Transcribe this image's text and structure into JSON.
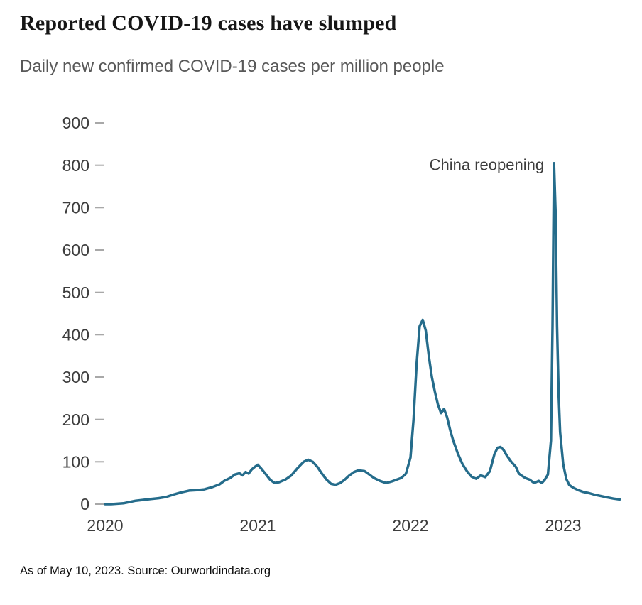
{
  "header": {
    "title": "Reported COVID-19 cases have slumped",
    "subtitle": "Daily new confirmed COVID-19 cases per million people"
  },
  "footer": {
    "text": "As of May 10, 2023. Source: Ourworldindata.org"
  },
  "chart_data": {
    "type": "line",
    "title": "Reported COVID-19 cases have slumped",
    "subtitle": "Daily new confirmed COVID-19 cases per million people",
    "xlabel": "",
    "ylabel": "",
    "xlim": [
      2020,
      2023.4
    ],
    "ylim": [
      0,
      900
    ],
    "yticks": [
      0,
      100,
      200,
      300,
      400,
      500,
      600,
      700,
      800,
      900
    ],
    "xticks": [
      2020,
      2021,
      2022,
      2023
    ],
    "grid": false,
    "legend": "none",
    "line_color": "#256C8B",
    "annotation": {
      "text": "China reopening",
      "x": 2022.94,
      "y": 800
    },
    "series_name": "Daily new confirmed COVID-19 cases per million people",
    "x": [
      2020.0,
      2020.04,
      2020.08,
      2020.12,
      2020.16,
      2020.2,
      2020.25,
      2020.3,
      2020.35,
      2020.4,
      2020.45,
      2020.5,
      2020.55,
      2020.6,
      2020.65,
      2020.7,
      2020.75,
      2020.78,
      2020.82,
      2020.85,
      2020.88,
      2020.9,
      2020.92,
      2020.94,
      2020.96,
      2020.98,
      2021.0,
      2021.02,
      2021.05,
      2021.08,
      2021.11,
      2021.14,
      2021.18,
      2021.22,
      2021.26,
      2021.3,
      2021.33,
      2021.36,
      2021.39,
      2021.42,
      2021.45,
      2021.48,
      2021.51,
      2021.54,
      2021.57,
      2021.6,
      2021.63,
      2021.66,
      2021.7,
      2021.73,
      2021.76,
      2021.8,
      2021.84,
      2021.88,
      2021.91,
      2021.94,
      2021.97,
      2022.0,
      2022.02,
      2022.04,
      2022.06,
      2022.08,
      2022.1,
      2022.12,
      2022.14,
      2022.16,
      2022.18,
      2022.2,
      2022.22,
      2022.24,
      2022.26,
      2022.28,
      2022.31,
      2022.34,
      2022.37,
      2022.4,
      2022.43,
      2022.46,
      2022.49,
      2022.52,
      2022.55,
      2022.57,
      2022.59,
      2022.61,
      2022.63,
      2022.66,
      2022.69,
      2022.71,
      2022.75,
      2022.78,
      2022.81,
      2022.84,
      2022.86,
      2022.88,
      2022.9,
      2022.92,
      2022.93,
      2022.94,
      2022.95,
      2022.96,
      2022.97,
      2022.98,
      2023.0,
      2023.02,
      2023.04,
      2023.07,
      2023.1,
      2023.13,
      2023.17,
      2023.21,
      2023.25,
      2023.29,
      2023.33,
      2023.37
    ],
    "values": [
      0,
      0,
      1,
      2,
      5,
      8,
      10,
      12,
      14,
      17,
      23,
      28,
      32,
      33,
      35,
      40,
      47,
      55,
      62,
      70,
      73,
      68,
      76,
      72,
      82,
      88,
      93,
      85,
      72,
      58,
      50,
      52,
      58,
      68,
      85,
      100,
      105,
      100,
      88,
      72,
      58,
      48,
      46,
      50,
      58,
      68,
      76,
      80,
      78,
      70,
      62,
      55,
      50,
      54,
      58,
      62,
      72,
      110,
      200,
      330,
      420,
      435,
      410,
      350,
      300,
      265,
      235,
      215,
      225,
      205,
      175,
      150,
      120,
      95,
      78,
      65,
      60,
      68,
      64,
      78,
      118,
      133,
      135,
      128,
      115,
      100,
      88,
      72,
      62,
      58,
      50,
      55,
      50,
      58,
      70,
      150,
      420,
      805,
      690,
      420,
      260,
      170,
      95,
      60,
      45,
      38,
      33,
      29,
      26,
      22,
      19,
      16,
      13,
      11
    ]
  }
}
